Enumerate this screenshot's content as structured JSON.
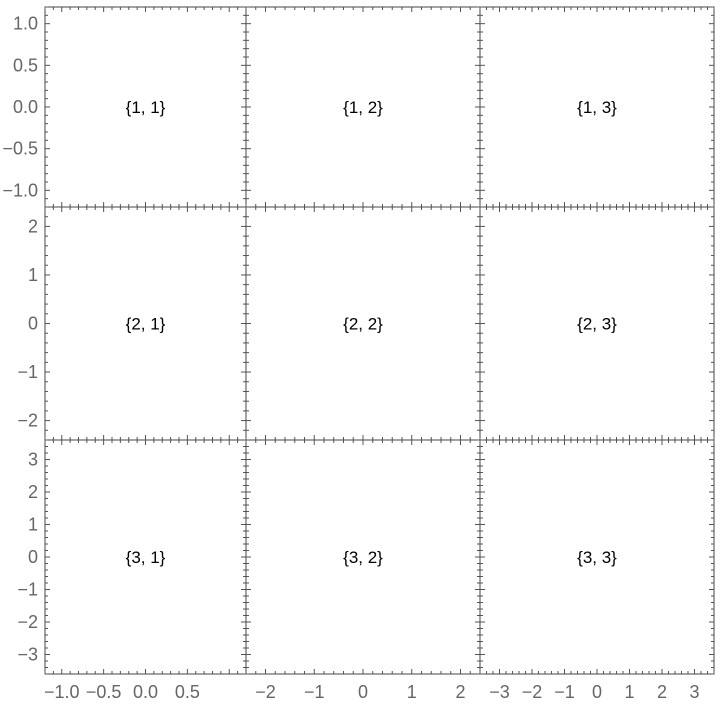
{
  "chart_data": {
    "type": "grid-of-frames",
    "rows": [
      {
        "ylim": [
          -1.2,
          1.2
        ],
        "yticks": [
          -1.0,
          -0.5,
          0.0,
          0.5,
          1.0
        ],
        "ytick_labels": [
          "−1.0",
          "−0.5",
          "0.0",
          "0.5",
          "1.0"
        ],
        "yminor_step": 0.1
      },
      {
        "ylim": [
          -2.4,
          2.4
        ],
        "yticks": [
          -2,
          -1,
          0,
          1,
          2
        ],
        "ytick_labels": [
          "−2",
          "−1",
          "0",
          "1",
          "2"
        ],
        "yminor_step": 0.2
      },
      {
        "ylim": [
          -3.6,
          3.6
        ],
        "yticks": [
          -3,
          -2,
          -1,
          0,
          1,
          2,
          3
        ],
        "ytick_labels": [
          "−3",
          "−2",
          "−1",
          "0",
          "1",
          "2",
          "3"
        ],
        "yminor_step": 0.2
      }
    ],
    "cols": [
      {
        "xlim": [
          -1.2,
          1.2
        ],
        "xticks": [
          -1.0,
          -0.5,
          0.0,
          0.5
        ],
        "xtick_labels": [
          "−1.0",
          "−0.5",
          "0.0",
          "0.5"
        ],
        "xminor_step": 0.1
      },
      {
        "xlim": [
          -2.4,
          2.4
        ],
        "xticks": [
          -2,
          -1,
          0,
          1,
          2
        ],
        "xtick_labels": [
          "−2",
          "−1",
          "0",
          "1",
          "2"
        ],
        "xminor_step": 0.2
      },
      {
        "xlim": [
          -3.6,
          3.6
        ],
        "xticks": [
          -3,
          -2,
          -1,
          0,
          1,
          2,
          3
        ],
        "xtick_labels": [
          "−3",
          "−2",
          "−1",
          "0",
          "1",
          "2",
          "3"
        ],
        "xminor_step": 0.2
      }
    ],
    "cells": [
      [
        "{1, 1}",
        "{1, 2}",
        "{1, 3}"
      ],
      [
        "{2, 1}",
        "{2, 2}",
        "{2, 3}"
      ],
      [
        "{3, 1}",
        "{3, 2}",
        "{3, 3}"
      ]
    ],
    "grid": false
  }
}
